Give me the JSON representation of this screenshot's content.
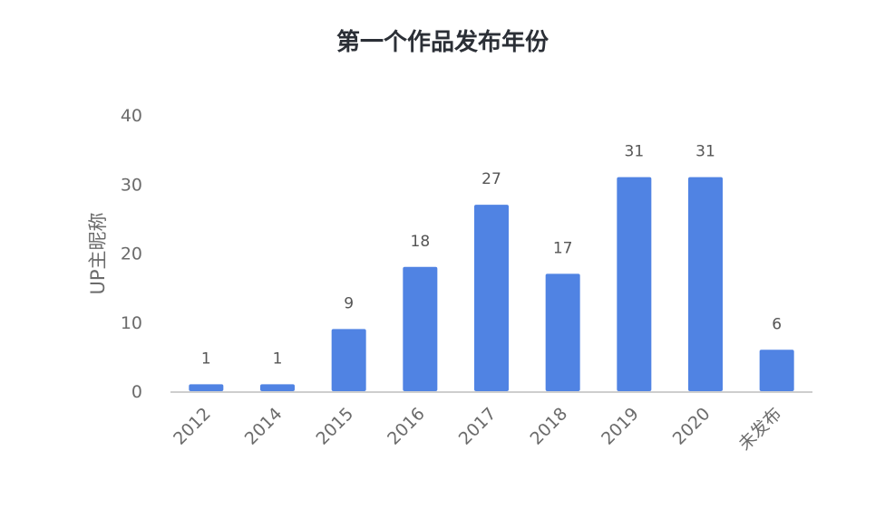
{
  "chart_data": {
    "type": "bar",
    "title": "第一个作品发布年份",
    "xlabel": "",
    "ylabel": "UP主昵称",
    "categories": [
      "2012",
      "2014",
      "2015",
      "2016",
      "2017",
      "2018",
      "2019",
      "2020",
      "未发布"
    ],
    "values": [
      1,
      1,
      9,
      18,
      27,
      17,
      31,
      31,
      6
    ],
    "ylim": [
      0,
      40
    ],
    "yticks": [
      0,
      10,
      20,
      30,
      40
    ],
    "grid": false,
    "legend": "none",
    "bar_color": "#5083e3",
    "axis_color": "#bdbdbd"
  }
}
